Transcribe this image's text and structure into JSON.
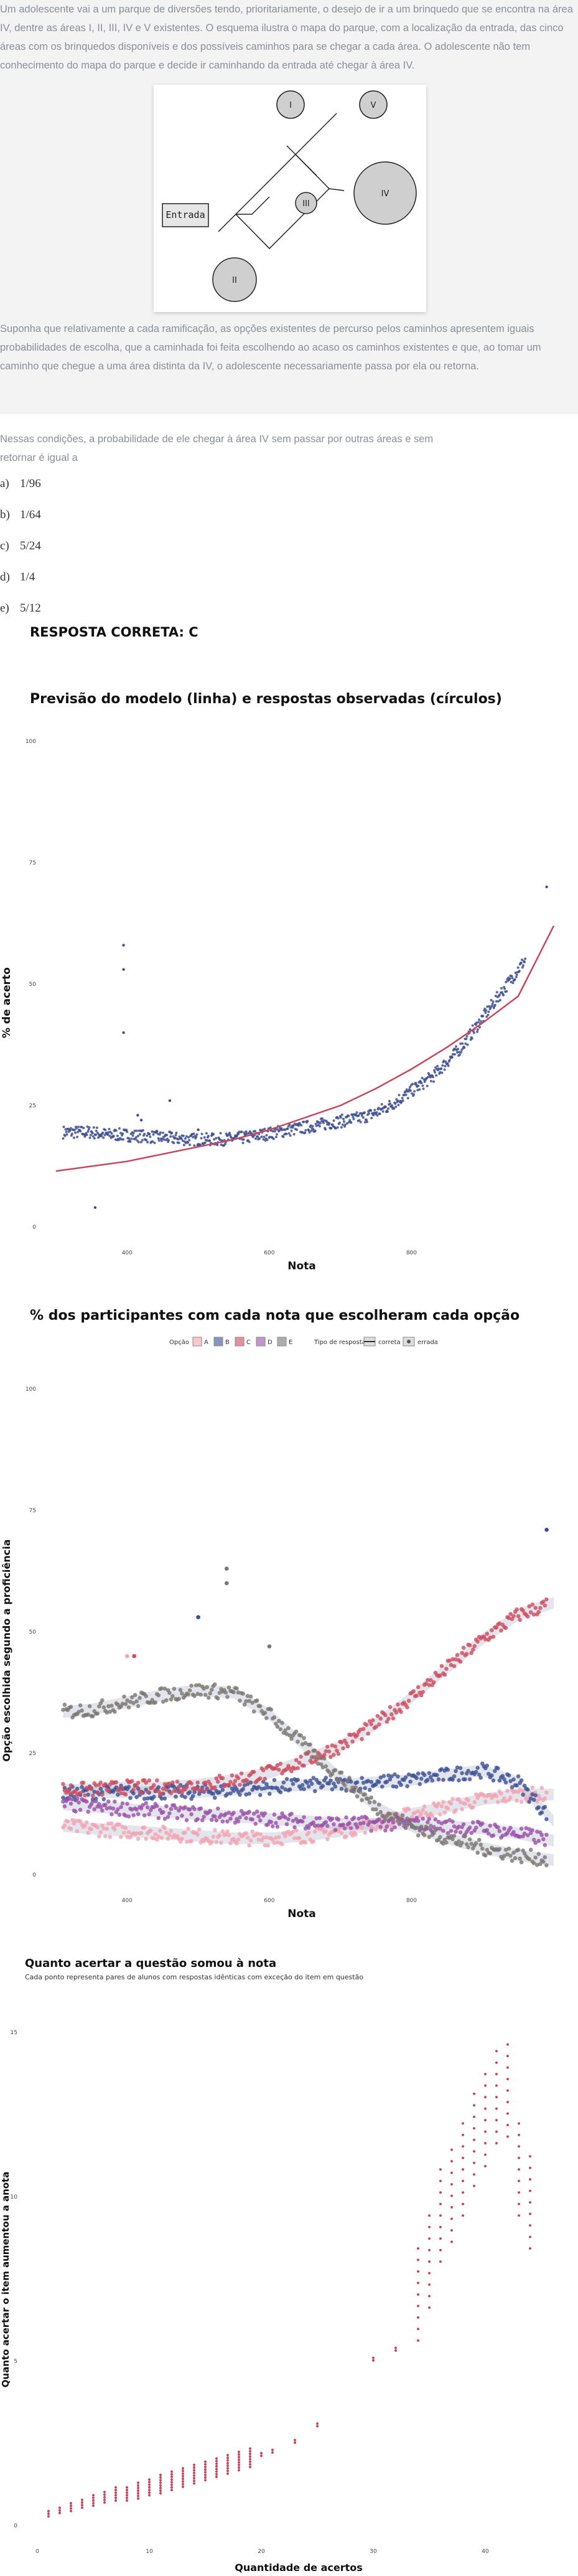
{
  "question": {
    "intro": "Um adolescente vai a um parque de diversões tendo, prioritariamente, o desejo de ir a um brinquedo que se encontra na área IV, dentre as áreas I, II, III, IV e V existentes. O esquema ilustra o mapa do parque, com a localização da entrada, das cinco áreas com os brinquedos disponíveis e dos possíveis caminhos para se chegar a cada área. O adolescente não tem conhecimento do mapa do parque e decide ir caminhando da entrada até chegar à área IV.",
    "diagram": {
      "entrance": "Entrada",
      "areas": [
        "I",
        "II",
        "III",
        "IV",
        "V"
      ]
    },
    "context": "Suponha que relativamente a cada ramificação, as opções existentes de percurso pelos caminhos apresentem iguais probabilidades de escolha, que a caminhada foi feita escolhendo ao acaso os caminhos existentes e que, ao tomar um caminho que chegue a uma área distinta da IV, o adolescente necessariamente passa por ela ou retorna.",
    "prompt": "Nessas condições, a probabilidade de ele chegar à área IV sem passar por outras áreas e sem retornar é igual a",
    "options": [
      {
        "letter": "a)",
        "text": "1/96"
      },
      {
        "letter": "b)",
        "text": "1/64"
      },
      {
        "letter": "c)",
        "text": "5/24"
      },
      {
        "letter": "d)",
        "text": "1/4"
      },
      {
        "letter": "e)",
        "text": "5/12"
      }
    ],
    "answer": "RESPOSTA CORRETA: C"
  },
  "colors": {
    "observed": "#3d4f8f",
    "model": "#c8465a",
    "opt_A": "#f4a3b2",
    "opt_B": "#3b4f95",
    "opt_C": "#cf4a5d",
    "opt_D": "#9a4fa8",
    "opt_E": "#7a7670",
    "ribbon": "#aeb4c8"
  },
  "chart_data": [
    {
      "type": "scatter",
      "title": "Previsão do modelo (linha) e respostas observadas (círculos)",
      "xlabel": "Nota",
      "ylabel": "% de acerto",
      "xlim": [
        300,
        1000
      ],
      "ylim": [
        0,
        100
      ],
      "x_ticks": [
        400,
        600,
        800
      ],
      "y_ticks": [
        0,
        25,
        50,
        75,
        100
      ],
      "grid": false,
      "series": [
        {
          "style": "points",
          "x": [
            330,
            350,
            370,
            390,
            410,
            430,
            450,
            470,
            490,
            510,
            530,
            550,
            570,
            590,
            610,
            630,
            650,
            670,
            690,
            710,
            730,
            750,
            770,
            790,
            810,
            830,
            850,
            870,
            890,
            910,
            930,
            950,
            970,
            990
          ],
          "y": [
            19.5,
            19.5,
            19.0,
            19.0,
            18.8,
            18.6,
            18.4,
            18.2,
            18.0,
            18.0,
            18.0,
            18.2,
            18.5,
            19.0,
            19.5,
            20.0,
            20.5,
            21.0,
            21.5,
            22.0,
            22.5,
            23.5,
            25.0,
            27.0,
            29.0,
            31.0,
            34.0,
            37.0,
            41.0,
            45.0,
            49.0,
            53.0,
            57.0,
            70.0
          ]
        },
        {
          "style": "line",
          "x": [
            300,
            350,
            400,
            450,
            500,
            550,
            600,
            650,
            700,
            750,
            800,
            850,
            900,
            950,
            1000
          ],
          "y": [
            11.5,
            12.5,
            13.5,
            15.0,
            16.5,
            18.0,
            20.0,
            22.5,
            25.0,
            28.5,
            32.5,
            37.0,
            42.0,
            47.5,
            62.0
          ]
        }
      ]
    },
    {
      "type": "scatter",
      "title": "% dos participantes com cada nota que escolheram cada opção",
      "xlabel": "Nota",
      "ylabel": "Opção escolhida segundo a proficiência",
      "xlim": [
        300,
        1000
      ],
      "ylim": [
        0,
        100
      ],
      "x_ticks": [
        400,
        600,
        800
      ],
      "y_ticks": [
        0,
        25,
        50,
        75,
        100
      ],
      "legend": {
        "position": "top",
        "option_title": "Opção",
        "options": [
          "A",
          "B",
          "C",
          "D",
          "E"
        ],
        "type_title": "Tipo de resposta",
        "types": [
          "correta",
          "errada"
        ]
      },
      "x": [
        310,
        350,
        400,
        450,
        500,
        550,
        600,
        650,
        700,
        750,
        800,
        850,
        900,
        950,
        1000
      ],
      "series": [
        {
          "name": "A",
          "values": [
            10.0,
            9.5,
            9.0,
            8.5,
            8.0,
            7.5,
            7.5,
            8.0,
            9.0,
            10.5,
            12.5,
            14.0,
            15.5,
            16.5,
            16.5
          ]
        },
        {
          "name": "B",
          "values": [
            16.5,
            17.0,
            17.0,
            17.0,
            17.0,
            17.5,
            18.0,
            18.5,
            18.5,
            19.0,
            19.5,
            20.5,
            21.5,
            19.0,
            11.0
          ]
        },
        {
          "name": "C",
          "values": [
            17.5,
            17.5,
            18.0,
            18.0,
            18.5,
            19.5,
            21.0,
            23.5,
            26.5,
            31.0,
            36.5,
            42.5,
            48.5,
            53.5,
            56.0
          ]
        },
        {
          "name": "D",
          "values": [
            14.5,
            14.0,
            13.5,
            13.0,
            12.5,
            12.0,
            11.5,
            11.0,
            10.5,
            10.5,
            10.5,
            10.0,
            9.5,
            8.5,
            7.0
          ]
        },
        {
          "name": "E",
          "values": [
            33.5,
            34.0,
            35.5,
            37.0,
            38.0,
            37.5,
            33.0,
            26.5,
            20.0,
            14.0,
            10.0,
            7.5,
            5.5,
            4.0,
            3.0
          ]
        }
      ]
    },
    {
      "type": "scatter",
      "title": "Quanto acertar a questão somou à nota",
      "subtitle": "Cada ponto representa pares de alunos com respostas idênticas com exceção do item em questão",
      "xlabel": "Quantidade de acertos",
      "ylabel": "Quanto acertar o item aumentou a anota",
      "xlim": [
        0,
        45
      ],
      "ylim": [
        0,
        16
      ],
      "x_ticks": [
        0,
        10,
        20,
        30,
        40
      ],
      "y_ticks": [
        0,
        5,
        10,
        15
      ],
      "series": [
        {
          "x": [
            1,
            2,
            3,
            4,
            5,
            6,
            7,
            8,
            9,
            10,
            11,
            12,
            13,
            14,
            15,
            16,
            17,
            18,
            19,
            20,
            21,
            23,
            25,
            30,
            32,
            34,
            35,
            36,
            37,
            38,
            39,
            40,
            41,
            42,
            43,
            44
          ],
          "y": [
            0.4,
            0.5,
            0.6,
            0.7,
            0.8,
            0.9,
            1.0,
            1.0,
            1.1,
            1.2,
            1.3,
            1.4,
            1.5,
            1.6,
            1.7,
            1.8,
            1.9,
            2.0,
            2.1,
            2.2,
            2.3,
            2.6,
            3.1,
            5.1,
            5.4,
            7.2,
            8.2,
            9.6,
            10.2,
            11.0,
            11.9,
            12.5,
            13.2,
            13.4,
            11.0,
            10.0
          ]
        }
      ]
    }
  ]
}
